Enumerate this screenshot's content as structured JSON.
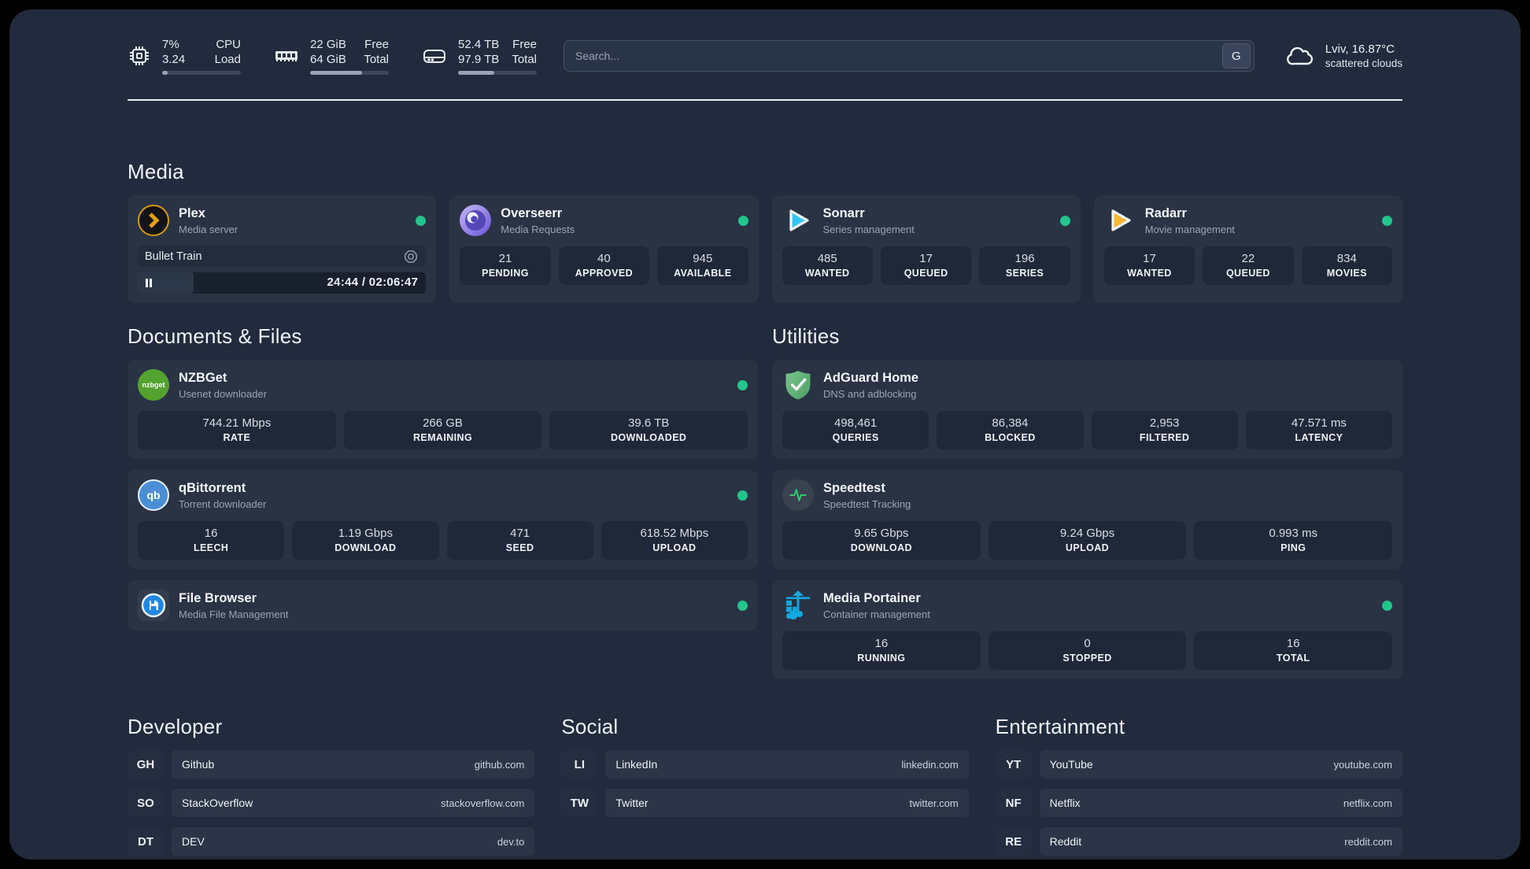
{
  "colors": {
    "status_online": "#22c58b",
    "plex_accent": "#e5a00d",
    "sonarr_accent": "#35c5f4",
    "radarr_accent": "#f7b731",
    "nzbget_accent": "#53a32f",
    "qbittorrent_accent": "#4a8fd5",
    "filebrowser_accent": "#2196f3",
    "adguard_accent": "#67b279",
    "speedtest_accent": "#2ecc71",
    "portainer_accent": "#13a8e0"
  },
  "topbar": {
    "cpu": {
      "value_top": "7%",
      "label_top": "CPU",
      "value_bottom": "3.24",
      "label_bottom": "Load",
      "bar_pct": 7
    },
    "memory": {
      "value_top": "22 GiB",
      "label_top": "Free",
      "value_bottom": "64 GiB",
      "label_bottom": "Total",
      "bar_pct": 66
    },
    "disk": {
      "value_top": "52.4 TB",
      "label_top": "Free",
      "value_bottom": "97.9 TB",
      "label_bottom": "Total",
      "bar_pct": 46
    },
    "search": {
      "placeholder": "Search...",
      "button_label": "G"
    },
    "weather": {
      "location": "Lviv, 16.87°C",
      "condition": "scattered clouds"
    }
  },
  "sections": {
    "media": {
      "title": "Media",
      "cards": [
        {
          "name": "Plex",
          "description": "Media server",
          "status": "online",
          "player": {
            "title": "Bullet Train",
            "time": "24:44 / 02:06:47",
            "progress_pct": 19.5
          }
        },
        {
          "name": "Overseerr",
          "description": "Media Requests",
          "status": "online",
          "stats": [
            {
              "value": "21",
              "label": "PENDING"
            },
            {
              "value": "40",
              "label": "APPROVED"
            },
            {
              "value": "945",
              "label": "AVAILABLE"
            }
          ]
        },
        {
          "name": "Sonarr",
          "description": "Series management",
          "status": "online",
          "stats": [
            {
              "value": "485",
              "label": "WANTED"
            },
            {
              "value": "17",
              "label": "QUEUED"
            },
            {
              "value": "196",
              "label": "SERIES"
            }
          ]
        },
        {
          "name": "Radarr",
          "description": "Movie management",
          "status": "online",
          "stats": [
            {
              "value": "17",
              "label": "WANTED"
            },
            {
              "value": "22",
              "label": "QUEUED"
            },
            {
              "value": "834",
              "label": "MOVIES"
            }
          ]
        }
      ]
    },
    "documents": {
      "title": "Documents & Files",
      "cards": [
        {
          "name": "NZBGet",
          "description": "Usenet downloader",
          "status": "online",
          "stats": [
            {
              "value": "744.21 Mbps",
              "label": "RATE"
            },
            {
              "value": "266 GB",
              "label": "REMAINING"
            },
            {
              "value": "39.6 TB",
              "label": "DOWNLOADED"
            }
          ]
        },
        {
          "name": "qBittorrent",
          "description": "Torrent downloader",
          "status": "online",
          "stats": [
            {
              "value": "16",
              "label": "LEECH"
            },
            {
              "value": "1.19 Gbps",
              "label": "DOWNLOAD"
            },
            {
              "value": "471",
              "label": "SEED"
            },
            {
              "value": "618.52 Mbps",
              "label": "UPLOAD"
            }
          ]
        },
        {
          "name": "File Browser",
          "description": "Media File Management",
          "status": "online"
        }
      ]
    },
    "utilities": {
      "title": "Utilities",
      "cards": [
        {
          "name": "AdGuard Home",
          "description": "DNS and adblocking",
          "stats": [
            {
              "value": "498,461",
              "label": "QUERIES"
            },
            {
              "value": "86,384",
              "label": "BLOCKED"
            },
            {
              "value": "2,953",
              "label": "FILTERED"
            },
            {
              "value": "47.571 ms",
              "label": "LATENCY"
            }
          ]
        },
        {
          "name": "Speedtest",
          "description": "Speedtest Tracking",
          "stats": [
            {
              "value": "9.65 Gbps",
              "label": "DOWNLOAD"
            },
            {
              "value": "9.24 Gbps",
              "label": "UPLOAD"
            },
            {
              "value": "0.993 ms",
              "label": "PING"
            }
          ]
        },
        {
          "name": "Media Portainer",
          "description": "Container management",
          "status": "online",
          "stats": [
            {
              "value": "16",
              "label": "RUNNING"
            },
            {
              "value": "0",
              "label": "STOPPED"
            },
            {
              "value": "16",
              "label": "TOTAL"
            }
          ]
        }
      ]
    },
    "developer": {
      "title": "Developer",
      "links": [
        {
          "abbr": "GH",
          "name": "Github",
          "url": "github.com"
        },
        {
          "abbr": "SO",
          "name": "StackOverflow",
          "url": "stackoverflow.com"
        },
        {
          "abbr": "DT",
          "name": "DEV",
          "url": "dev.to"
        }
      ]
    },
    "social": {
      "title": "Social",
      "links": [
        {
          "abbr": "LI",
          "name": "LinkedIn",
          "url": "linkedin.com"
        },
        {
          "abbr": "TW",
          "name": "Twitter",
          "url": "twitter.com"
        }
      ]
    },
    "entertainment": {
      "title": "Entertainment",
      "links": [
        {
          "abbr": "YT",
          "name": "YouTube",
          "url": "youtube.com"
        },
        {
          "abbr": "NF",
          "name": "Netflix",
          "url": "netflix.com"
        },
        {
          "abbr": "RE",
          "name": "Reddit",
          "url": "reddit.com"
        }
      ]
    }
  }
}
